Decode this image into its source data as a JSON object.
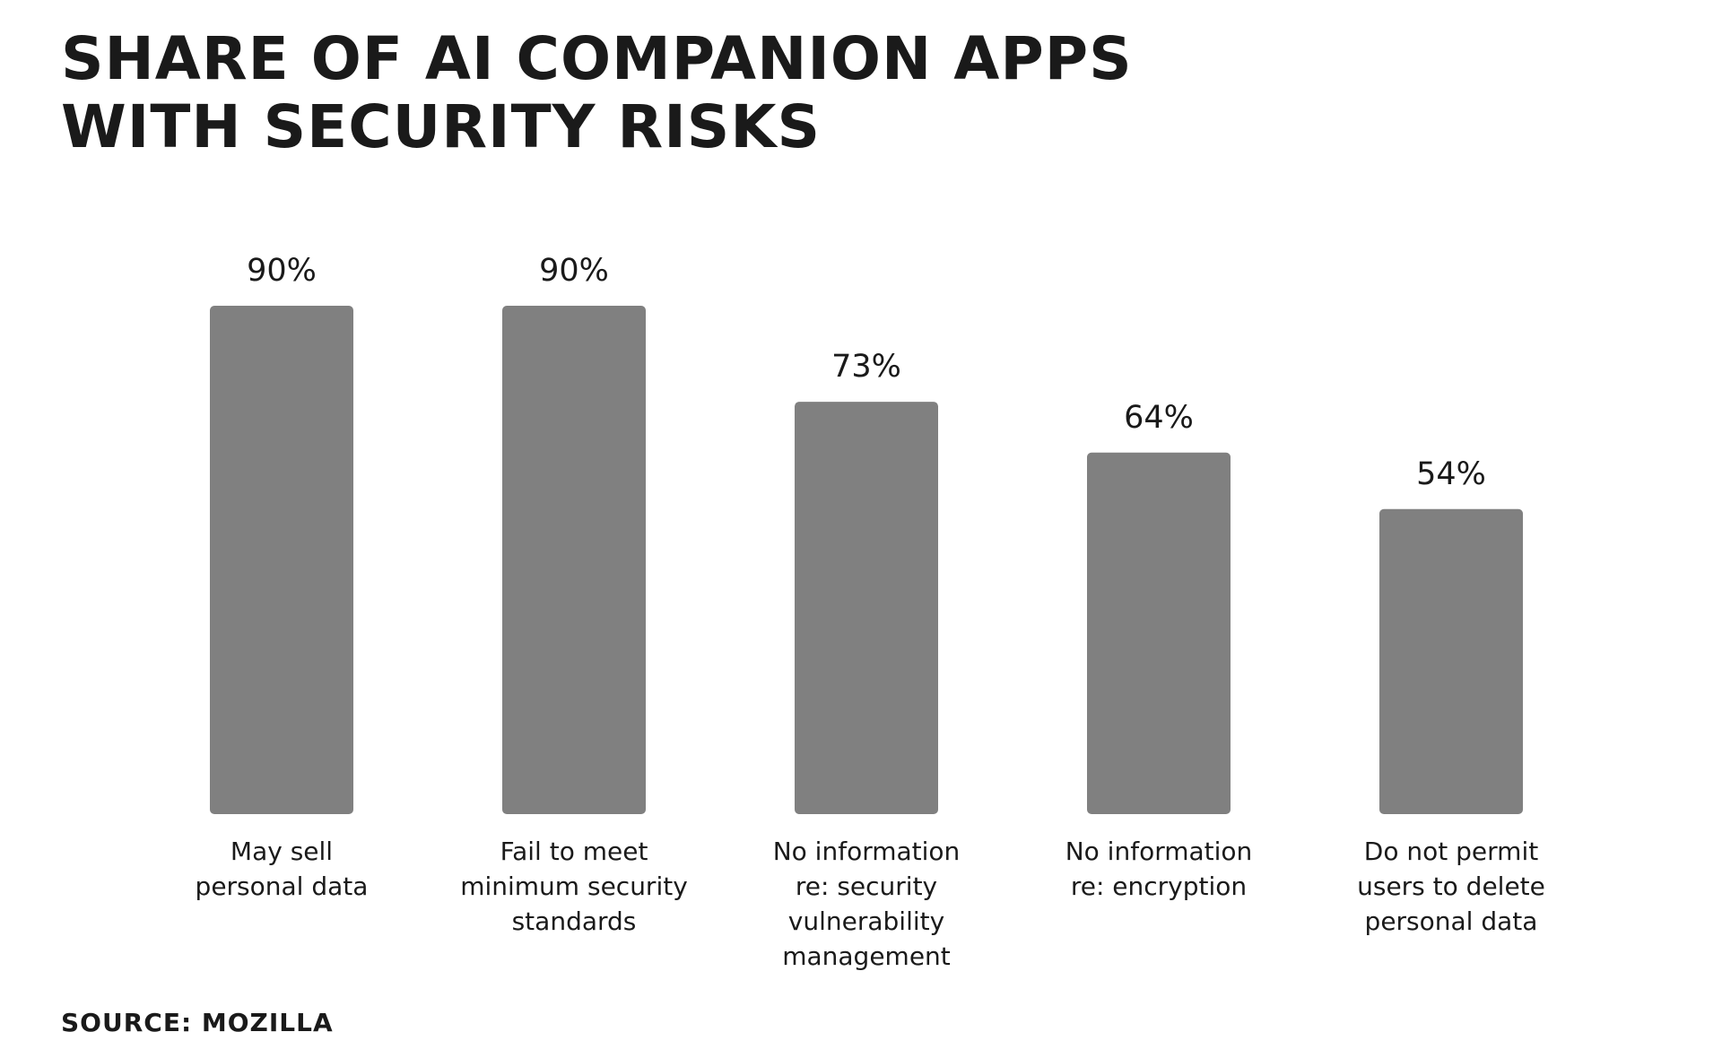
{
  "chart_data": {
    "type": "bar",
    "title": "Share of AI companion apps with security risks",
    "categories": [
      "May sell\npersonal data",
      "Fail to meet\nminimum security\nstandards",
      "No information\nre: security\nvulnerability\nmanagement",
      "No information\nre: encryption",
      "Do not permit\nusers to delete\npersonal data"
    ],
    "values": [
      90,
      90,
      73,
      64,
      54
    ],
    "value_labels": [
      "90%",
      "90%",
      "73%",
      "64%",
      "54%"
    ],
    "ylim": [
      0,
      100
    ],
    "bar_color": "#808080",
    "grid": false,
    "xlabel": "",
    "ylabel": ""
  },
  "source": "Source: Mozilla"
}
